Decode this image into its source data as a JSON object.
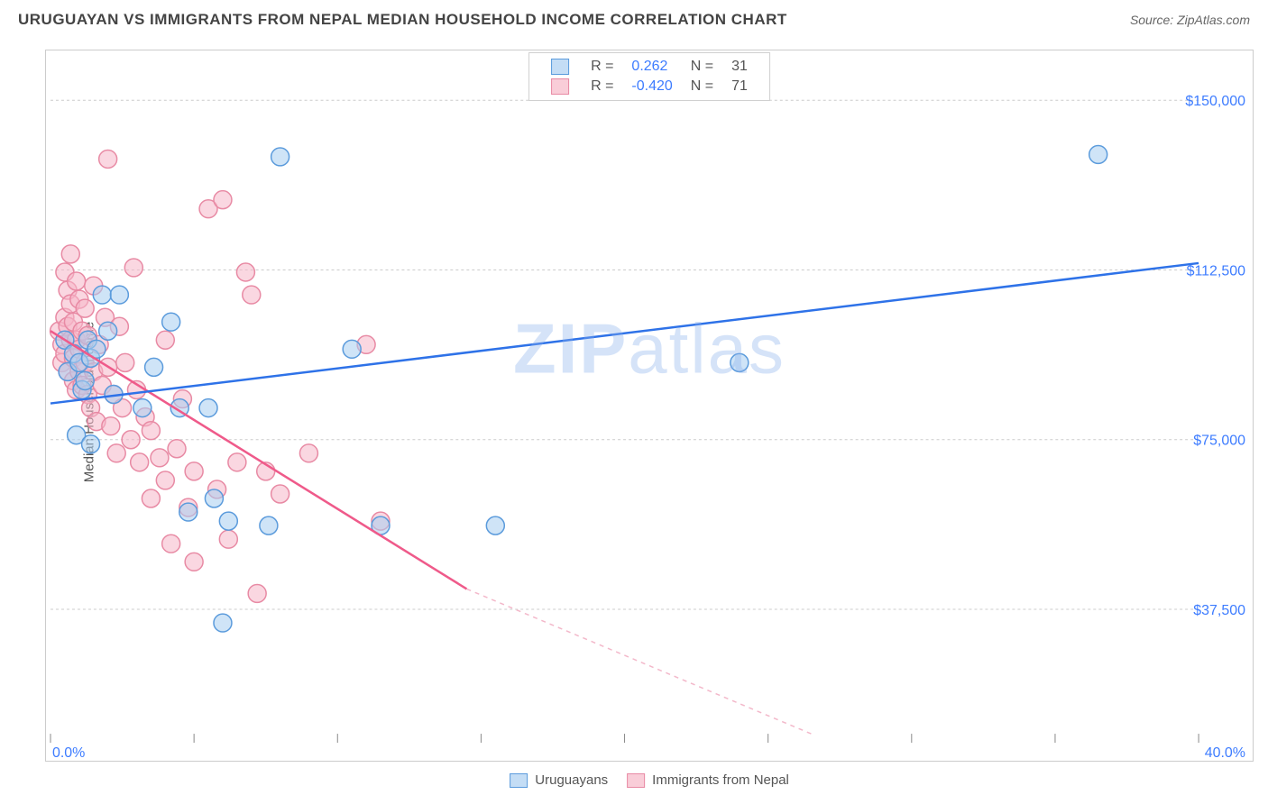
{
  "header": {
    "title": "URUGUAYAN VS IMMIGRANTS FROM NEPAL MEDIAN HOUSEHOLD INCOME CORRELATION CHART",
    "source_prefix": "Source: ",
    "source": "ZipAtlas.com"
  },
  "chart": {
    "type": "scatter",
    "y_label": "Median Household Income",
    "watermark_a": "ZIP",
    "watermark_b": "atlas",
    "xlim": [
      0,
      40
    ],
    "ylim": [
      10000,
      160000
    ],
    "x_ticks": [
      0,
      5,
      10,
      15,
      20,
      25,
      30,
      35,
      40
    ],
    "x_tick_labels_shown": {
      "0": "0.0%",
      "40": "40.0%"
    },
    "y_ticks": [
      37500,
      75000,
      112500,
      150000
    ],
    "y_tick_labels": [
      "$37,500",
      "$75,000",
      "$112,500",
      "$150,000"
    ],
    "grid_color": "#cccccc",
    "background_color": "#ffffff",
    "marker_radius": 10,
    "series": {
      "blue": {
        "label": "Uruguayans",
        "color_fill": "#a8cdf0",
        "color_stroke": "#5b9bdc",
        "R": "0.262",
        "N": "31",
        "trend": {
          "x1": 0,
          "y1": 83000,
          "x2": 40,
          "y2": 114000
        },
        "points": [
          [
            0.5,
            97000
          ],
          [
            0.6,
            90000
          ],
          [
            0.8,
            94000
          ],
          [
            0.9,
            76000
          ],
          [
            1.0,
            92000
          ],
          [
            1.1,
            86000
          ],
          [
            1.2,
            88000
          ],
          [
            1.3,
            97000
          ],
          [
            1.4,
            93000
          ],
          [
            1.4,
            74000
          ],
          [
            1.6,
            95000
          ],
          [
            1.8,
            107000
          ],
          [
            2.0,
            99000
          ],
          [
            2.2,
            85000
          ],
          [
            2.4,
            107000
          ],
          [
            3.2,
            82000
          ],
          [
            3.6,
            91000
          ],
          [
            4.2,
            101000
          ],
          [
            4.5,
            82000
          ],
          [
            4.8,
            59000
          ],
          [
            5.5,
            82000
          ],
          [
            5.7,
            62000
          ],
          [
            6.0,
            34500
          ],
          [
            6.2,
            57000
          ],
          [
            7.6,
            56000
          ],
          [
            8.0,
            137500
          ],
          [
            10.5,
            95000
          ],
          [
            11.5,
            56000
          ],
          [
            15.5,
            56000
          ],
          [
            24.0,
            92000
          ],
          [
            36.5,
            138000
          ]
        ]
      },
      "pink": {
        "label": "Immigrants from Nepal",
        "color_fill": "#f6b6c8",
        "color_stroke": "#e88aa4",
        "R": "-0.420",
        "N": "71",
        "trend_solid": {
          "x1": 0,
          "y1": 99000,
          "x2": 14.5,
          "y2": 42000
        },
        "trend_dash": {
          "x1": 14.5,
          "y1": 42000,
          "x2": 26.5,
          "y2": 10000
        },
        "points": [
          [
            0.3,
            99000
          ],
          [
            0.4,
            96000
          ],
          [
            0.4,
            92000
          ],
          [
            0.5,
            112000
          ],
          [
            0.5,
            102000
          ],
          [
            0.5,
            94000
          ],
          [
            0.6,
            108000
          ],
          [
            0.6,
            100000
          ],
          [
            0.6,
            90000
          ],
          [
            0.7,
            116000
          ],
          [
            0.7,
            105000
          ],
          [
            0.7,
            97000
          ],
          [
            0.8,
            101000
          ],
          [
            0.8,
            93000
          ],
          [
            0.8,
            88000
          ],
          [
            0.9,
            110000
          ],
          [
            0.9,
            97000
          ],
          [
            0.9,
            86000
          ],
          [
            1.0,
            106000
          ],
          [
            1.0,
            95000
          ],
          [
            1.0,
            90000
          ],
          [
            1.1,
            99000
          ],
          [
            1.1,
            87000
          ],
          [
            1.2,
            104000
          ],
          [
            1.2,
            92000
          ],
          [
            1.3,
            98000
          ],
          [
            1.3,
            85000
          ],
          [
            1.4,
            82000
          ],
          [
            1.5,
            109000
          ],
          [
            1.5,
            90000
          ],
          [
            1.6,
            79000
          ],
          [
            1.7,
            96000
          ],
          [
            1.8,
            87000
          ],
          [
            1.9,
            102000
          ],
          [
            2.0,
            137000
          ],
          [
            2.0,
            91000
          ],
          [
            2.1,
            78000
          ],
          [
            2.2,
            85000
          ],
          [
            2.3,
            72000
          ],
          [
            2.4,
            100000
          ],
          [
            2.5,
            82000
          ],
          [
            2.6,
            92000
          ],
          [
            2.8,
            75000
          ],
          [
            2.9,
            113000
          ],
          [
            3.0,
            86000
          ],
          [
            3.1,
            70000
          ],
          [
            3.3,
            80000
          ],
          [
            3.5,
            77000
          ],
          [
            3.5,
            62000
          ],
          [
            3.8,
            71000
          ],
          [
            4.0,
            97000
          ],
          [
            4.0,
            66000
          ],
          [
            4.2,
            52000
          ],
          [
            4.4,
            73000
          ],
          [
            4.6,
            84000
          ],
          [
            4.8,
            60000
          ],
          [
            5.0,
            68000
          ],
          [
            5.0,
            48000
          ],
          [
            5.5,
            126000
          ],
          [
            5.8,
            64000
          ],
          [
            6.0,
            128000
          ],
          [
            6.2,
            53000
          ],
          [
            6.5,
            70000
          ],
          [
            6.8,
            112000
          ],
          [
            7.0,
            107000
          ],
          [
            7.2,
            41000
          ],
          [
            7.5,
            68000
          ],
          [
            8.0,
            63000
          ],
          [
            9.0,
            72000
          ],
          [
            11.0,
            96000
          ],
          [
            11.5,
            57000
          ]
        ]
      }
    },
    "legend_top": {
      "r_label": "R =",
      "n_label": "N ="
    }
  }
}
